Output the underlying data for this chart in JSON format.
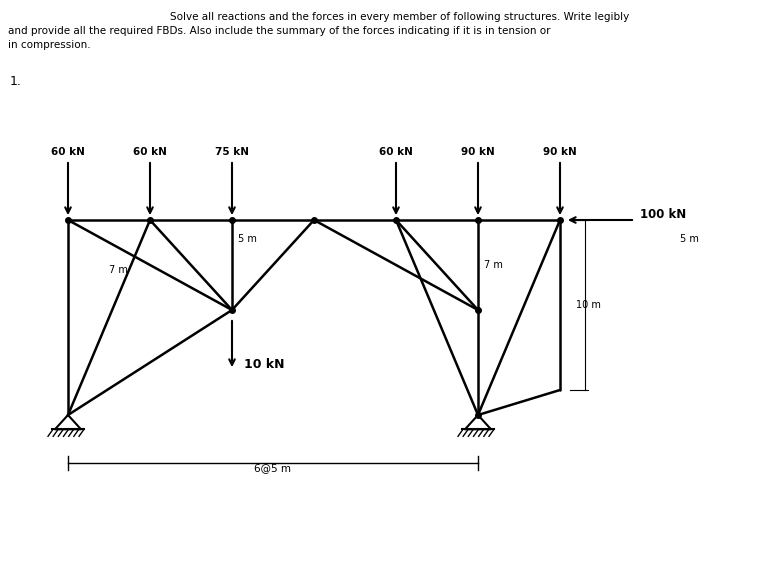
{
  "title_line1": "Solve all reactions and the forces in every member of following structures. Write legibly",
  "title_line2": "and provide all the required FBDs. Also include the summary of the forces indicating if it is in tension or",
  "title_line3": "in compression.",
  "problem_number": "1.",
  "bg_color": "#ffffff",
  "label_60_1": "60 kN",
  "label_60_2": "60 kN",
  "label_75": "75 kN",
  "label_60_4": "60 kN",
  "label_90_5": "90 kN",
  "label_90_6": "90 kN",
  "label_100": "100 kN",
  "label_10": "10 kN",
  "label_5m_1": "5 m",
  "label_5m_2": "5 m",
  "label_7m_1": "7 m",
  "label_7m_2": "7 m",
  "label_10m": "10 m",
  "label_span": "6@5 m"
}
